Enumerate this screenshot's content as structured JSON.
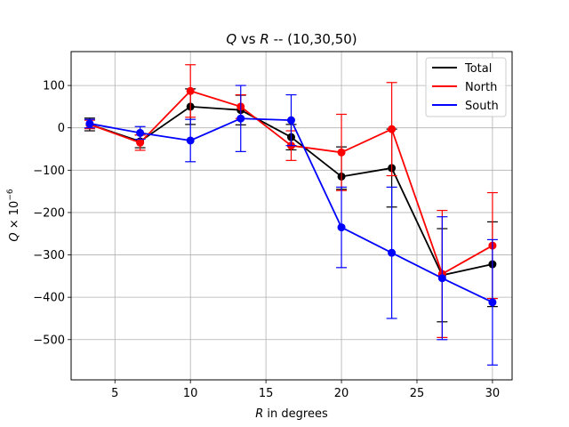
{
  "chart_data": {
    "type": "line",
    "title_parts": [
      "Q",
      " vs ",
      "R",
      " -- (10,30,50)"
    ],
    "xlabel_parts": [
      "R",
      " in degrees"
    ],
    "ylabel_parts": [
      "Q",
      " × 10",
      "−6"
    ],
    "x_ticks": [
      "5",
      "10",
      "15",
      "20",
      "25",
      "30"
    ],
    "y_ticks": [
      "100",
      "0",
      "−100",
      "−200",
      "−300",
      "−400",
      "−500"
    ],
    "x_tick_values": [
      5,
      10,
      15,
      20,
      25,
      30
    ],
    "y_tick_values": [
      100,
      0,
      -100,
      -200,
      -300,
      -400,
      -500
    ],
    "xlim": [
      2.1,
      31.3
    ],
    "ylim": [
      -595,
      180
    ],
    "grid": true,
    "legend_position": "top-right",
    "x": [
      3.33,
      6.67,
      10,
      13.33,
      16.67,
      20,
      23.33,
      26.67,
      30
    ],
    "series": [
      {
        "name": "Total",
        "color": "#000000",
        "values": [
          8,
          -32,
          50,
          42,
          -22,
          -115,
          -95,
          -348,
          -322
        ],
        "err_low": [
          15,
          15,
          42,
          35,
          30,
          30,
          92,
          110,
          100
        ],
        "err_high": [
          15,
          15,
          42,
          35,
          30,
          70,
          92,
          110,
          100
        ]
      },
      {
        "name": "North",
        "color": "#ff0000",
        "values": [
          8,
          -35,
          87,
          50,
          -42,
          -58,
          -3,
          -345,
          -278
        ],
        "err_low": [
          10,
          18,
          62,
          28,
          35,
          90,
          110,
          150,
          125
        ],
        "err_high": [
          10,
          18,
          62,
          28,
          35,
          90,
          110,
          150,
          125
        ]
      },
      {
        "name": "South",
        "color": "#0000ff",
        "values": [
          10,
          -12,
          -30,
          22,
          18,
          -235,
          -295,
          -355,
          -412
        ],
        "err_low": [
          10,
          15,
          50,
          78,
          60,
          95,
          155,
          145,
          148
        ],
        "err_high": [
          10,
          15,
          50,
          78,
          60,
          95,
          155,
          145,
          148
        ]
      }
    ]
  }
}
